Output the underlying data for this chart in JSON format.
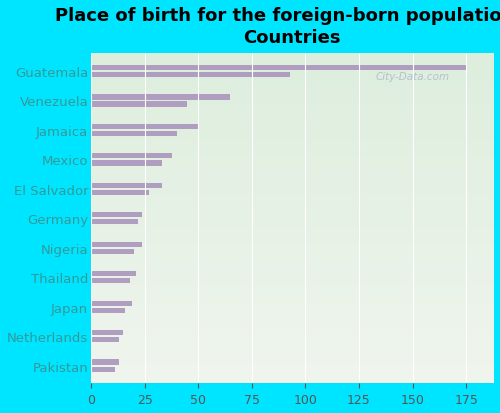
{
  "title": "Place of birth for the foreign-born population -\nCountries",
  "categories": [
    "Guatemala",
    "Venezuela",
    "Jamaica",
    "Mexico",
    "El Salvador",
    "Germany",
    "Nigeria",
    "Thailand",
    "Japan",
    "Netherlands",
    "Pakistan"
  ],
  "values_top": [
    175,
    65,
    50,
    38,
    33,
    24,
    24,
    21,
    19,
    15,
    13
  ],
  "values_bottom": [
    93,
    45,
    40,
    33,
    27,
    22,
    20,
    18,
    16,
    13,
    11
  ],
  "bar_color": "#b09ec0",
  "bg_color_outer": "#00e5ff",
  "bg_color_inner_top": "#ddeedd",
  "bg_color_inner_bottom": "#f0f5ee",
  "label_color": "#339999",
  "xlim": [
    0,
    187.5
  ],
  "xticks": [
    0,
    25,
    50,
    75,
    100,
    125,
    150,
    175
  ],
  "bar_height": 0.18,
  "bar_gap": 0.06,
  "title_fontsize": 13,
  "label_fontsize": 9.5,
  "tick_fontsize": 9,
  "watermark": "City-Data.com"
}
